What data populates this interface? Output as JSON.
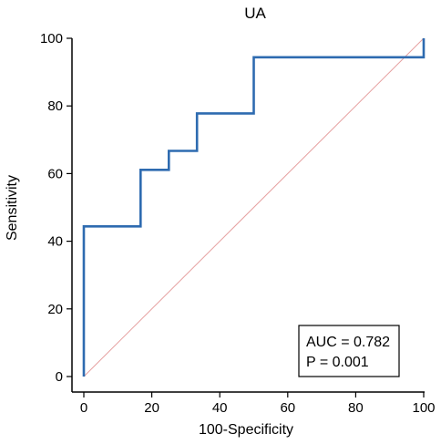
{
  "chart_data": {
    "type": "line",
    "title": "UA",
    "xlabel": "100-Specificity",
    "ylabel": "Sensitivity",
    "xlim": [
      0,
      100
    ],
    "ylim": [
      0,
      100
    ],
    "xticks": [
      0,
      20,
      40,
      60,
      80,
      100
    ],
    "yticks": [
      0,
      20,
      40,
      60,
      80,
      100
    ],
    "grid": false,
    "series": [
      {
        "color": "#2e6bb0",
        "x": [
          0,
          0,
          16.7,
          16.7,
          25,
          25,
          33.3,
          33.3,
          50,
          50,
          100,
          100
        ],
        "y": [
          0,
          44.4,
          44.4,
          61.1,
          61.1,
          66.7,
          66.7,
          77.8,
          77.8,
          94.4,
          94.4,
          100
        ]
      },
      {
        "color": "#e6a0a0",
        "style": "diagonal-reference",
        "x": [
          0,
          100
        ],
        "y": [
          0,
          100
        ]
      }
    ],
    "annotation": {
      "auc_text": "AUC = 0.782",
      "p_text": "P = 0.001",
      "placement": "bottom-right"
    }
  }
}
